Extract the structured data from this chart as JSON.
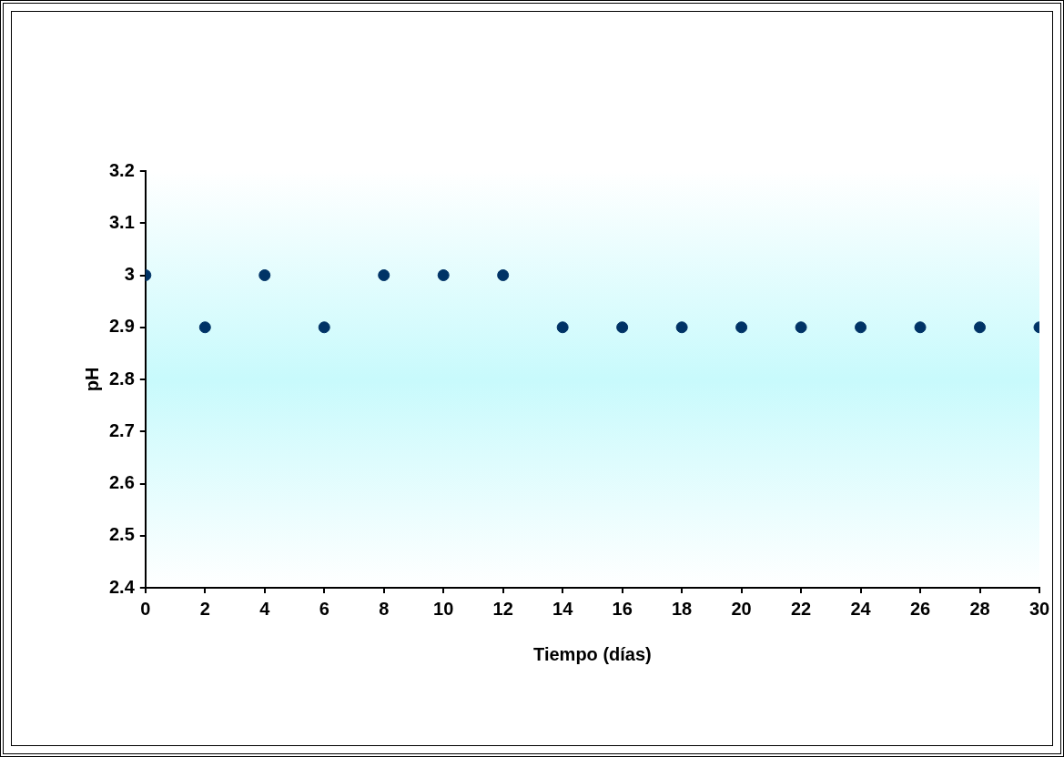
{
  "chart_data": {
    "type": "scatter",
    "xlabel": "Tiempo (días)",
    "ylabel": "pH",
    "x": [
      0,
      2,
      4,
      6,
      8,
      10,
      12,
      14,
      16,
      18,
      20,
      22,
      24,
      26,
      28,
      30
    ],
    "series": [
      {
        "color": "#003366",
        "values": [
          3,
          2.9,
          3,
          2.9,
          3,
          3,
          3,
          2.9,
          2.9,
          2.9,
          2.9,
          2.9,
          2.9,
          2.9,
          2.9,
          2.9
        ]
      }
    ],
    "xlim": [
      0,
      30
    ],
    "xticks": [
      0,
      2,
      4,
      6,
      8,
      10,
      12,
      14,
      16,
      18,
      20,
      22,
      24,
      26,
      28,
      30
    ],
    "ylim": [
      2.4,
      3.2
    ],
    "yticks": [
      2.4,
      2.5,
      2.6,
      2.7,
      2.8,
      2.9,
      3,
      3.1,
      3.2
    ],
    "grid": false,
    "legend": false,
    "marker": "circle"
  }
}
